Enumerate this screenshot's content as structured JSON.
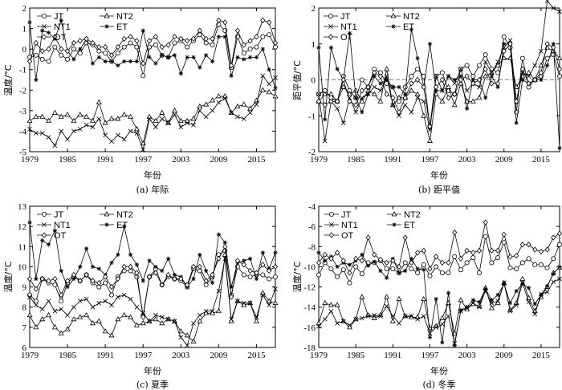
{
  "chart_data": [
    {
      "type": "line",
      "caption": "(a) 年际",
      "xlabel": "年份",
      "ylabel": "温度/°C",
      "xlim": [
        1979,
        2018
      ],
      "ylim": [
        -5,
        2
      ],
      "xticks": [
        "1979",
        "1985",
        "1991",
        "1997",
        "2003",
        "2009",
        "2015"
      ],
      "yticks": [
        "-5",
        "-4",
        "-3",
        "-2",
        "-1",
        "0",
        "1",
        "2"
      ],
      "legend": [
        "JT",
        "NT2",
        "NT1",
        "ET",
        "OT"
      ],
      "zero_line": false,
      "series": [
        {
          "name": "JT",
          "values": [
            -0.4,
            -0.3,
            -0.5,
            -0.6,
            0.1,
            -0.3,
            -0.5,
            0.0,
            -0.2,
            0.3,
            0.2,
            -0.1,
            -0.2,
            -0.6,
            -0.2,
            0.1,
            0.3,
            0.1,
            -1.3,
            0.1,
            0.2,
            -0.3,
            -0.4,
            0.3,
            0.4,
            0.1,
            0.4,
            0.7,
            0.3,
            0.2,
            1.2,
            0.9,
            -0.9,
            0.6,
            -0.2,
            0.0,
            0.1,
            0.6,
            0.7,
            0.1
          ]
        },
        {
          "name": "NT2",
          "values": [
            -3.5,
            -3.3,
            -3.3,
            -3.5,
            -3.1,
            -3.3,
            -3.2,
            -3.5,
            -3.2,
            -3.3,
            -3.5,
            -2.6,
            -3.6,
            -3.4,
            -3.4,
            -3.2,
            -3.3,
            -3.9,
            -4.6,
            -3.3,
            -3.5,
            -3.1,
            -3.6,
            -3.0,
            -3.5,
            -3.5,
            -3.4,
            -2.8,
            -2.7,
            -2.5,
            -2.3,
            -2.3,
            -3.1,
            -2.8,
            -2.7,
            -2.9,
            -2.5,
            -2.0,
            -2.1,
            -2.3
          ]
        },
        {
          "name": "NT1",
          "values": [
            -3.9,
            -4.1,
            -4.1,
            -4.3,
            -4.7,
            -4.0,
            -4.4,
            -4.0,
            -3.9,
            -3.7,
            -3.8,
            -3.4,
            -4.2,
            -4.5,
            -4.2,
            -4.4,
            -4.0,
            -4.1,
            -4.9,
            -3.4,
            -3.8,
            -3.4,
            -3.6,
            -3.2,
            -3.8,
            -3.6,
            -3.7,
            -3.0,
            -3.3,
            -3.0,
            -2.6,
            -2.4,
            -3.1,
            -3.3,
            -3.4,
            -3.1,
            -2.7,
            -1.3,
            -1.7,
            -1.4
          ]
        },
        {
          "name": "ET",
          "values": [
            1.3,
            -1.5,
            0.9,
            0.8,
            0.5,
            1.4,
            -0.1,
            -0.5,
            0.0,
            0.5,
            -0.7,
            -0.4,
            -0.6,
            -0.6,
            -0.8,
            -0.6,
            -0.6,
            -0.6,
            0.9,
            -0.4,
            -0.7,
            -0.3,
            -0.4,
            -0.3,
            -1.2,
            -0.4,
            -0.4,
            -0.9,
            -0.3,
            -0.6,
            0.6,
            0.6,
            -1.3,
            -0.4,
            -0.5,
            -0.4,
            -0.4,
            0.0,
            -1.0,
            -1.9
          ]
        },
        {
          "name": "OT",
          "values": [
            -0.6,
            0.3,
            -0.1,
            0.0,
            0.6,
            0.0,
            -0.1,
            0.3,
            0.4,
            0.5,
            0.3,
            0.1,
            0.1,
            -0.3,
            0.1,
            0.5,
            0.6,
            0.4,
            -0.7,
            0.4,
            0.6,
            0.1,
            0.2,
            0.6,
            0.5,
            0.4,
            0.5,
            0.9,
            0.5,
            0.5,
            1.4,
            1.3,
            -0.8,
            0.9,
            0.2,
            0.4,
            0.6,
            1.4,
            1.3,
            0.3
          ]
        }
      ]
    },
    {
      "type": "line",
      "caption": "(b) 距平值",
      "xlabel": "年份",
      "ylabel": "距平值/°C",
      "xlim": [
        1979,
        2018
      ],
      "ylim": [
        -2,
        2
      ],
      "xticks": [
        "1979",
        "1985",
        "1991",
        "1997",
        "2003",
        "2009",
        "2015"
      ],
      "yticks": [
        "-2",
        "-1",
        "0",
        "1",
        "2"
      ],
      "legend": [
        "JT",
        "NT2",
        "NT1",
        "ET",
        "OT"
      ],
      "zero_line": true,
      "series": [
        {
          "name": "JT",
          "values": [
            -0.4,
            -0.3,
            -0.5,
            -0.6,
            0.1,
            -0.3,
            -0.5,
            0.0,
            -0.2,
            0.3,
            0.2,
            -0.1,
            -0.2,
            -0.6,
            -0.2,
            0.1,
            0.3,
            0.1,
            -1.3,
            0.1,
            0.2,
            -0.3,
            -0.4,
            0.3,
            0.4,
            0.1,
            0.4,
            0.7,
            0.3,
            0.2,
            1.2,
            0.9,
            -0.9,
            0.6,
            -0.2,
            0.0,
            0.1,
            0.6,
            0.7,
            0.1
          ]
        },
        {
          "name": "NT2",
          "values": [
            -0.6,
            -0.4,
            -0.4,
            -0.6,
            -0.2,
            -0.4,
            -0.3,
            -0.6,
            -0.3,
            -0.4,
            -0.6,
            0.3,
            -0.7,
            -0.5,
            -0.5,
            -0.3,
            -0.4,
            -1.0,
            -1.7,
            -0.4,
            -0.6,
            -0.2,
            -0.7,
            -0.1,
            -0.6,
            -0.6,
            -0.5,
            0.1,
            0.2,
            0.4,
            0.6,
            0.6,
            -0.2,
            0.1,
            0.2,
            0.0,
            0.4,
            0.9,
            0.8,
            0.6
          ]
        },
        {
          "name": "NT1",
          "values": [
            -0.4,
            -1.7,
            -0.6,
            -0.8,
            -1.2,
            -0.5,
            -0.9,
            -0.5,
            -0.4,
            -0.2,
            -0.3,
            0.1,
            -0.7,
            -1.0,
            -0.7,
            -0.9,
            -0.5,
            -0.6,
            -1.4,
            0.1,
            -0.3,
            0.1,
            -0.1,
            0.3,
            -0.3,
            -0.1,
            -0.2,
            0.5,
            0.2,
            0.5,
            0.9,
            1.1,
            -0.6,
            0.2,
            0.1,
            0.4,
            0.8,
            2.2,
            2.0,
            1.9
          ]
        },
        {
          "name": "ET",
          "values": [
            0.9,
            -1.1,
            0.9,
            0.3,
            0.0,
            1.3,
            -0.5,
            -0.9,
            -0.4,
            0.1,
            -0.1,
            0.0,
            -0.2,
            -0.2,
            -0.4,
            1.4,
            0.6,
            -0.2,
            1.0,
            -0.3,
            -0.3,
            0.1,
            0.0,
            0.1,
            -0.8,
            0.0,
            0.0,
            -0.5,
            0.1,
            -0.2,
            1.0,
            1.0,
            -1.2,
            0.0,
            -0.1,
            0.0,
            0.0,
            0.4,
            1.0,
            -1.9
          ]
        },
        {
          "name": "OT",
          "values": [
            -0.6,
            -0.7,
            -0.6,
            -0.6,
            0.0,
            -0.6,
            -0.7,
            -0.3,
            -0.2,
            0.2,
            0.1,
            -0.4,
            -0.5,
            -0.9,
            -0.5,
            -0.1,
            0.0,
            -0.2,
            -1.3,
            -0.2,
            0.0,
            -0.5,
            -0.4,
            0.0,
            0.1,
            -0.1,
            0.0,
            0.3,
            -0.1,
            -0.1,
            0.8,
            1.0,
            -0.6,
            0.3,
            -0.1,
            0.0,
            0.2,
            1.0,
            0.9,
            0.3
          ]
        }
      ]
    },
    {
      "type": "line",
      "caption": "(c) 夏季",
      "xlabel": "年份",
      "ylabel": "温度/°C",
      "xlim": [
        1979,
        2018
      ],
      "ylim": [
        6,
        13
      ],
      "xticks": [
        "1979",
        "1985",
        "1991",
        "1997",
        "2003",
        "2009",
        "2015"
      ],
      "yticks": [
        "6",
        "7",
        "8",
        "9",
        "10",
        "11",
        "12",
        "13"
      ],
      "legend": [
        "JT",
        "NT2",
        "NT1",
        "ET",
        "OT"
      ],
      "zero_line": false,
      "series": [
        {
          "name": "JT",
          "values": [
            8.6,
            8.3,
            9.4,
            9.2,
            9.1,
            8.3,
            9.2,
            9.5,
            9.3,
            9.6,
            9.2,
            9.0,
            9.2,
            8.6,
            9.5,
            9.8,
            9.8,
            9.5,
            7.6,
            9.5,
            9.9,
            9.1,
            9.5,
            9.4,
            9.3,
            9.0,
            9.9,
            9.8,
            9.1,
            9.5,
            10.6,
            10.8,
            8.6,
            10.0,
            9.6,
            9.5,
            9.6,
            9.6,
            9.4,
            9.5
          ]
        },
        {
          "name": "NT2",
          "values": [
            7.6,
            7.0,
            7.4,
            7.6,
            7.0,
            6.7,
            6.9,
            7.4,
            7.5,
            7.6,
            7.2,
            7.3,
            6.8,
            6.6,
            7.4,
            7.6,
            7.5,
            7.1,
            7.2,
            7.3,
            7.4,
            7.2,
            7.4,
            7.3,
            6.8,
            6.6,
            6.3,
            7.3,
            7.7,
            7.7,
            7.8,
            10.6,
            7.3,
            8.3,
            8.1,
            8.2,
            7.3,
            8.7,
            8.3,
            8.2
          ]
        },
        {
          "name": "NT1",
          "values": [
            8.5,
            8.1,
            7.9,
            8.3,
            7.8,
            7.9,
            7.6,
            8.0,
            8.3,
            8.4,
            8.0,
            8.2,
            8.3,
            8.1,
            8.5,
            8.6,
            8.4,
            8.0,
            7.7,
            7.3,
            7.6,
            7.5,
            7.4,
            7.3,
            6.5,
            6.1,
            7.2,
            7.6,
            7.8,
            7.8,
            8.8,
            10.4,
            7.4,
            8.3,
            8.2,
            8.2,
            7.5,
            8.6,
            8.1,
            8.9
          ]
        },
        {
          "name": "ET",
          "values": [
            12.2,
            9.4,
            11.3,
            11.1,
            11.8,
            9.8,
            9.0,
            9.4,
            10.0,
            10.9,
            10.0,
            9.9,
            9.6,
            10.2,
            10.6,
            12.0,
            10.6,
            10.1,
            9.3,
            10.3,
            10.0,
            9.8,
            10.4,
            9.6,
            9.5,
            9.0,
            9.4,
            10.6,
            9.8,
            9.2,
            11.6,
            11.2,
            9.0,
            10.2,
            10.3,
            10.4,
            9.4,
            10.7,
            9.9,
            10.7
          ]
        },
        {
          "name": "OT",
          "values": [
            9.4,
            8.9,
            9.4,
            9.3,
            9.4,
            8.6,
            9.3,
            9.6,
            9.3,
            9.6,
            9.3,
            9.2,
            9.5,
            9.0,
            9.4,
            10.0,
            10.0,
            9.7,
            7.5,
            9.5,
            9.7,
            9.1,
            9.6,
            9.4,
            9.4,
            9.1,
            10.0,
            10.0,
            9.3,
            9.6,
            10.4,
            11.0,
            8.5,
            10.3,
            10.1,
            9.8,
            9.7,
            10.1,
            9.8,
            10.0
          ]
        }
      ]
    },
    {
      "type": "line",
      "caption": "(d) 冬季",
      "xlabel": "年份",
      "ylabel": "温度/°C",
      "xlim": [
        1979,
        2018
      ],
      "ylim": [
        -18,
        -4
      ],
      "xticks": [
        "1979",
        "1985",
        "1991",
        "1997",
        "2003",
        "2009",
        "2015"
      ],
      "yticks": [
        "-18",
        "-16",
        "-14",
        "-12",
        "-10",
        "-8",
        "-6",
        "-4"
      ],
      "legend": [
        "JT",
        "NT2",
        "NT1",
        "ET",
        "OT"
      ],
      "zero_line": false,
      "series": [
        {
          "name": "JT",
          "values": [
            -10.8,
            -9.6,
            -10.2,
            -11.0,
            -10.3,
            -11.6,
            -10.0,
            -10.7,
            -9.6,
            -9.6,
            -9.4,
            -10.2,
            -10.2,
            -10.6,
            -9.6,
            -10.2,
            -10.6,
            -9.8,
            -10.9,
            -10.0,
            -10.6,
            -10.6,
            -9.0,
            -10.3,
            -9.6,
            -9.1,
            -10.6,
            -7.0,
            -9.6,
            -9.1,
            -7.6,
            -10.1,
            -10.2,
            -9.6,
            -9.2,
            -9.8,
            -9.8,
            -10.1,
            -9.2,
            -7.8
          ]
        },
        {
          "name": "NT2",
          "values": [
            -15.6,
            -13.6,
            -13.8,
            -13.8,
            -15.4,
            -16.0,
            -15.2,
            -13.0,
            -14.8,
            -15.1,
            -14.8,
            -13.0,
            -15.4,
            -13.2,
            -14.9,
            -15.0,
            -15.0,
            -13.2,
            -16.1,
            -15.9,
            -15.1,
            -13.6,
            -16.6,
            -13.3,
            -14.2,
            -13.7,
            -13.9,
            -12.1,
            -14.1,
            -13.6,
            -11.6,
            -14.3,
            -13.6,
            -11.2,
            -13.1,
            -14.4,
            -13.0,
            -12.0,
            -10.6,
            -10.1
          ]
        },
        {
          "name": "NT1",
          "values": [
            -15.9,
            -15.2,
            -14.4,
            -15.6,
            -15.4,
            -15.8,
            -15.2,
            -15.1,
            -14.9,
            -14.8,
            -14.9,
            -13.9,
            -14.9,
            -15.6,
            -14.9,
            -14.9,
            -15.2,
            -14.9,
            -16.6,
            -16.0,
            -15.7,
            -14.9,
            -17.6,
            -14.4,
            -14.1,
            -13.6,
            -14.0,
            -12.4,
            -13.6,
            -13.4,
            -11.6,
            -14.4,
            -13.8,
            -11.6,
            -13.5,
            -14.7,
            -12.7,
            -12.5,
            -11.5,
            -11.2
          ]
        },
        {
          "name": "ET",
          "values": [
            -8.6,
            -9.4,
            -9.0,
            -10.0,
            -9.6,
            -9.8,
            -9.4,
            -8.8,
            -9.9,
            -9.5,
            -10.4,
            -11.1,
            -9.2,
            -10.6,
            -10.4,
            -9.2,
            -10.2,
            -10.3,
            -17.0,
            -13.2,
            -17.5,
            -12.6,
            -17.8,
            -14.3,
            -14.0,
            -13.3,
            -13.5,
            -12.2,
            -13.3,
            -12.8,
            -11.7,
            -13.6,
            -12.4,
            -11.7,
            -12.1,
            -13.7,
            -12.8,
            -11.9,
            -10.7,
            -10.0
          ]
        },
        {
          "name": "OT",
          "values": [
            -9.6,
            -8.8,
            -9.2,
            -8.6,
            -9.4,
            -10.6,
            -9.2,
            -9.4,
            -7.1,
            -8.8,
            -9.3,
            -9.6,
            -9.4,
            -10.0,
            -7.1,
            -9.6,
            -8.6,
            -8.4,
            -10.2,
            -9.0,
            -9.6,
            -9.6,
            -6.6,
            -9.2,
            -8.4,
            -8.6,
            -8.4,
            -5.6,
            -8.4,
            -8.4,
            -6.8,
            -9.0,
            -8.9,
            -7.8,
            -7.8,
            -8.3,
            -8.5,
            -8.3,
            -7.1,
            -6.7
          ]
        }
      ]
    }
  ]
}
